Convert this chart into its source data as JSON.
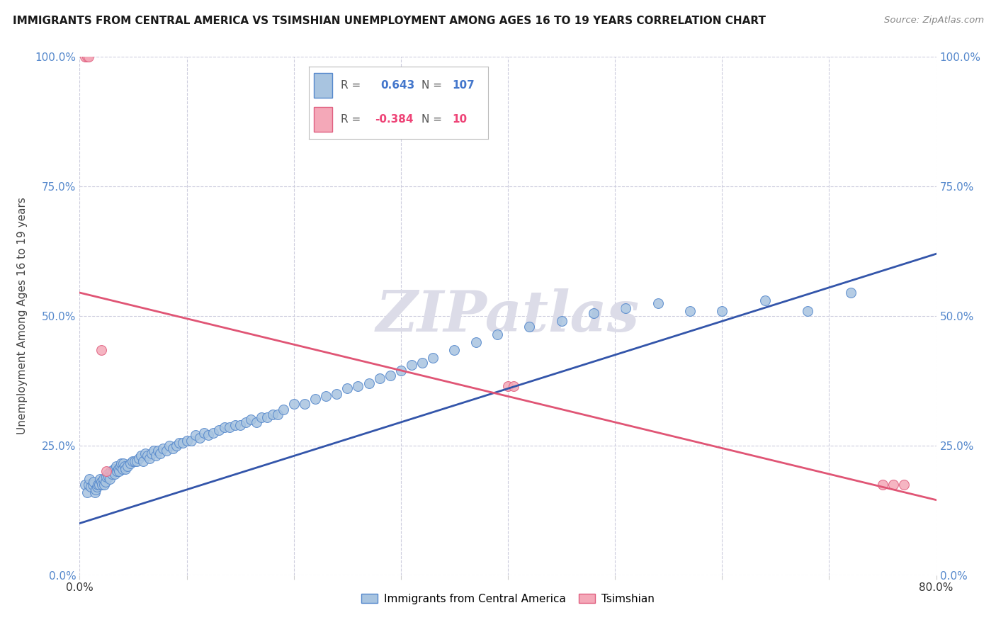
{
  "title": "IMMIGRANTS FROM CENTRAL AMERICA VS TSIMSHIAN UNEMPLOYMENT AMONG AGES 16 TO 19 YEARS CORRELATION CHART",
  "source": "Source: ZipAtlas.com",
  "xlabel_blue": "Immigrants from Central America",
  "xlabel_pink": "Tsimshian",
  "ylabel": "Unemployment Among Ages 16 to 19 years",
  "xlim": [
    0.0,
    0.8
  ],
  "ylim": [
    0.0,
    1.0
  ],
  "xticks": [
    0.0,
    0.1,
    0.2,
    0.3,
    0.4,
    0.5,
    0.6,
    0.7,
    0.8
  ],
  "ytick_labels": [
    "0.0%",
    "25.0%",
    "50.0%",
    "75.0%",
    "100.0%"
  ],
  "yticks": [
    0.0,
    0.25,
    0.5,
    0.75,
    1.0
  ],
  "blue_R": 0.643,
  "blue_N": 107,
  "pink_R": -0.384,
  "pink_N": 10,
  "blue_color": "#A8C4E0",
  "pink_color": "#F4A8B8",
  "blue_edge_color": "#5588CC",
  "pink_edge_color": "#E06080",
  "blue_line_color": "#3355AA",
  "pink_line_color": "#E05575",
  "legend_R_color_blue": "#4477CC",
  "legend_R_color_pink": "#EE4477",
  "watermark": "ZIPatlas",
  "background_color": "#FFFFFF",
  "blue_scatter_x": [
    0.005,
    0.007,
    0.008,
    0.009,
    0.01,
    0.012,
    0.013,
    0.014,
    0.015,
    0.016,
    0.017,
    0.018,
    0.019,
    0.02,
    0.021,
    0.022,
    0.023,
    0.024,
    0.025,
    0.026,
    0.027,
    0.028,
    0.029,
    0.03,
    0.031,
    0.032,
    0.033,
    0.034,
    0.035,
    0.036,
    0.037,
    0.038,
    0.039,
    0.04,
    0.041,
    0.042,
    0.043,
    0.045,
    0.047,
    0.049,
    0.051,
    0.053,
    0.055,
    0.057,
    0.059,
    0.061,
    0.063,
    0.065,
    0.067,
    0.069,
    0.071,
    0.073,
    0.075,
    0.078,
    0.081,
    0.084,
    0.087,
    0.09,
    0.093,
    0.096,
    0.1,
    0.104,
    0.108,
    0.112,
    0.116,
    0.12,
    0.125,
    0.13,
    0.135,
    0.14,
    0.145,
    0.15,
    0.155,
    0.16,
    0.165,
    0.17,
    0.175,
    0.18,
    0.185,
    0.19,
    0.2,
    0.21,
    0.22,
    0.23,
    0.24,
    0.25,
    0.26,
    0.27,
    0.28,
    0.29,
    0.3,
    0.31,
    0.32,
    0.33,
    0.35,
    0.37,
    0.39,
    0.42,
    0.45,
    0.48,
    0.51,
    0.54,
    0.57,
    0.6,
    0.64,
    0.68,
    0.72
  ],
  "blue_scatter_y": [
    0.175,
    0.16,
    0.175,
    0.185,
    0.17,
    0.175,
    0.18,
    0.16,
    0.165,
    0.17,
    0.175,
    0.175,
    0.185,
    0.18,
    0.175,
    0.185,
    0.175,
    0.18,
    0.19,
    0.195,
    0.19,
    0.185,
    0.2,
    0.195,
    0.2,
    0.205,
    0.195,
    0.21,
    0.2,
    0.205,
    0.2,
    0.21,
    0.215,
    0.205,
    0.215,
    0.21,
    0.205,
    0.21,
    0.215,
    0.22,
    0.22,
    0.22,
    0.225,
    0.23,
    0.22,
    0.235,
    0.23,
    0.225,
    0.235,
    0.24,
    0.23,
    0.24,
    0.235,
    0.245,
    0.24,
    0.25,
    0.245,
    0.25,
    0.255,
    0.255,
    0.26,
    0.26,
    0.27,
    0.265,
    0.275,
    0.27,
    0.275,
    0.28,
    0.285,
    0.285,
    0.29,
    0.29,
    0.295,
    0.3,
    0.295,
    0.305,
    0.305,
    0.31,
    0.31,
    0.32,
    0.33,
    0.33,
    0.34,
    0.345,
    0.35,
    0.36,
    0.365,
    0.37,
    0.38,
    0.385,
    0.395,
    0.405,
    0.41,
    0.42,
    0.435,
    0.45,
    0.465,
    0.48,
    0.49,
    0.505,
    0.515,
    0.525,
    0.51,
    0.51,
    0.53,
    0.51,
    0.545
  ],
  "blue_trendline_x": [
    0.0,
    0.8
  ],
  "blue_trendline_y": [
    0.1,
    0.62
  ],
  "pink_scatter_x": [
    0.005,
    0.007,
    0.008,
    0.02,
    0.025,
    0.4,
    0.405,
    0.75,
    0.76,
    0.77
  ],
  "pink_scatter_y": [
    1.0,
    1.0,
    1.0,
    0.435,
    0.2,
    0.365,
    0.365,
    0.175,
    0.175,
    0.175
  ],
  "pink_trendline_x": [
    0.0,
    0.8
  ],
  "pink_trendline_y": [
    0.545,
    0.145
  ]
}
